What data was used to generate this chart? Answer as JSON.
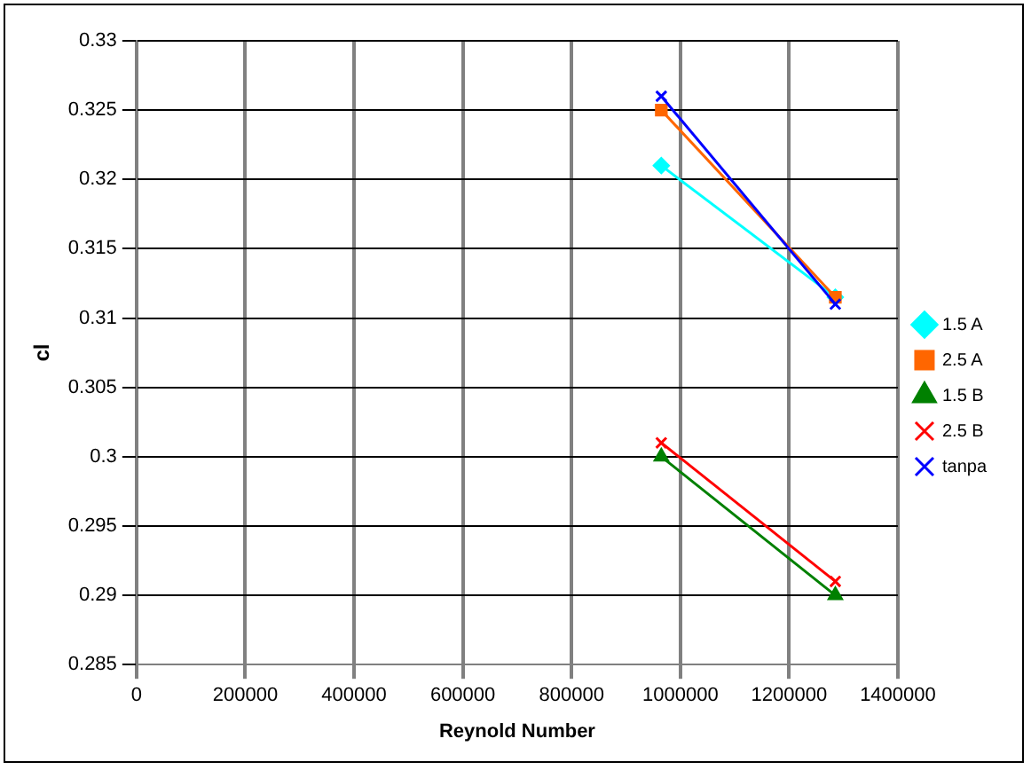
{
  "chart_data": {
    "type": "line",
    "xlabel": "Reynold Number",
    "ylabel": "cl",
    "xlim": [
      0,
      1400000
    ],
    "xticks": [
      0,
      200000,
      400000,
      600000,
      800000,
      1000000,
      1200000,
      1400000
    ],
    "ylim": [
      0.285,
      0.33
    ],
    "yticks": [
      0.285,
      0.29,
      0.295,
      0.3,
      0.305,
      0.31,
      0.315,
      0.32,
      0.325,
      0.33
    ],
    "x": [
      965000,
      1285000
    ],
    "series": [
      {
        "name": "1.5 A",
        "color": "#00ffff",
        "values": [
          0.321,
          0.3115
        ],
        "marker": "diamond"
      },
      {
        "name": "2.5 A",
        "color": "#ff6600",
        "values": [
          0.325,
          0.3115
        ],
        "marker": "square"
      },
      {
        "name": "1.5 B",
        "color": "#008000",
        "values": [
          0.3,
          0.29
        ],
        "marker": "triangle"
      },
      {
        "name": "2.5 B",
        "color": "#ff0000",
        "values": [
          0.301,
          0.291
        ],
        "marker": "cross"
      },
      {
        "name": "tanpa",
        "color": "#0000ff",
        "values": [
          0.326,
          0.311
        ],
        "marker": "cross"
      }
    ],
    "grid": true,
    "legend": "right"
  }
}
